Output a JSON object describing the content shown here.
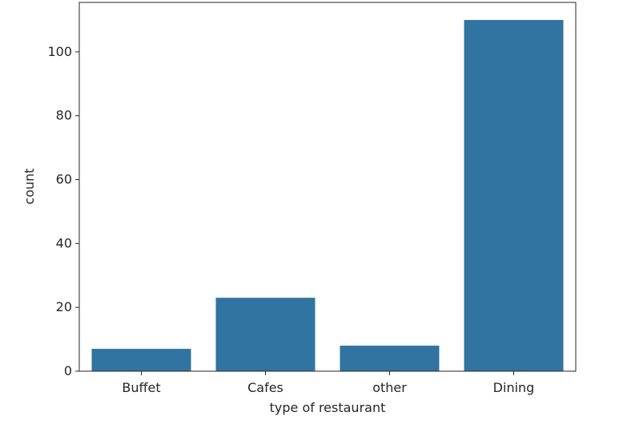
{
  "chart_data": {
    "type": "bar",
    "categories": [
      "Buffet",
      "Cafes",
      "other",
      "Dining"
    ],
    "values": [
      7,
      23,
      8,
      110
    ],
    "xlabel": "type of restaurant",
    "ylabel": "count",
    "ylim": [
      0,
      115.5
    ],
    "yticks": [
      0,
      20,
      40,
      60,
      80,
      100
    ],
    "bar_color": "#3274a1",
    "grid": false,
    "legend": "none"
  }
}
